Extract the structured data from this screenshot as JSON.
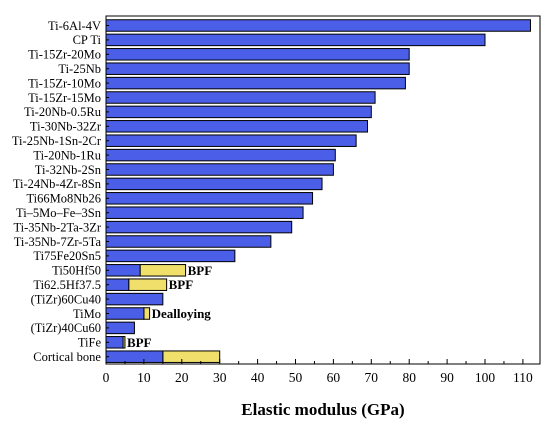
{
  "chart_data": {
    "type": "bar",
    "orientation": "horizontal",
    "title": "",
    "xlabel": "Elastic modulus (GPa)",
    "ylabel": "",
    "xlim": [
      0,
      115
    ],
    "xticks": [
      "0",
      "10",
      "20",
      "30",
      "40",
      "50",
      "60",
      "70",
      "80",
      "90",
      "100",
      "110"
    ],
    "grid": false,
    "legend": "none",
    "colors": {
      "bar": "#4a5ee8",
      "range": "#f0df6a",
      "outline": "#000000"
    },
    "categories": [
      "Ti-6Al-4V",
      "CP Ti",
      "Ti-15Zr-20Mo",
      "Ti-25Nb",
      "Ti-15Zr-10Mo",
      "Ti-15Zr-15Mo",
      "Ti-20Nb-0.5Ru",
      "Ti-30Nb-32Zr",
      "Ti-25Nb-1Sn-2Cr",
      "Ti-20Nb-1Ru",
      "Ti-32Nb-2Sn",
      "Ti-24Nb-4Zr-8Sn",
      "Ti66Mo8Nb26",
      "Ti–5Mo–Fe–3Sn",
      "Ti-35Nb-2Ta-3Zr",
      "Ti-35Nb-7Zr-5Ta",
      "Ti75Fe20Sn5",
      "Ti50Hf50",
      "Ti62.5Hf37.5",
      "(TiZr)60Cu40",
      "TiMo",
      "(TiZr)40Cu60",
      "TiFe",
      "Cortical bone"
    ],
    "values": [
      112,
      100,
      80,
      80,
      79,
      71,
      70,
      69,
      66,
      60.5,
      60,
      57,
      54.5,
      52,
      49,
      43.5,
      34,
      9,
      6,
      15,
      10,
      7.5,
      4.5,
      15
    ],
    "ranges": [
      null,
      null,
      null,
      null,
      null,
      null,
      null,
      null,
      null,
      null,
      null,
      null,
      null,
      null,
      null,
      null,
      null,
      [
        9,
        21
      ],
      [
        6,
        16
      ],
      null,
      [
        10,
        11.5
      ],
      null,
      [
        4.5,
        5
      ],
      [
        15,
        30
      ]
    ],
    "annotations": [
      {
        "category": "Ti50Hf50",
        "text": "BPF"
      },
      {
        "category": "Ti62.5Hf37.5",
        "text": "BPF"
      },
      {
        "category": "TiMo",
        "text": "Dealloying"
      },
      {
        "category": "TiFe",
        "text": "BPF"
      }
    ]
  }
}
